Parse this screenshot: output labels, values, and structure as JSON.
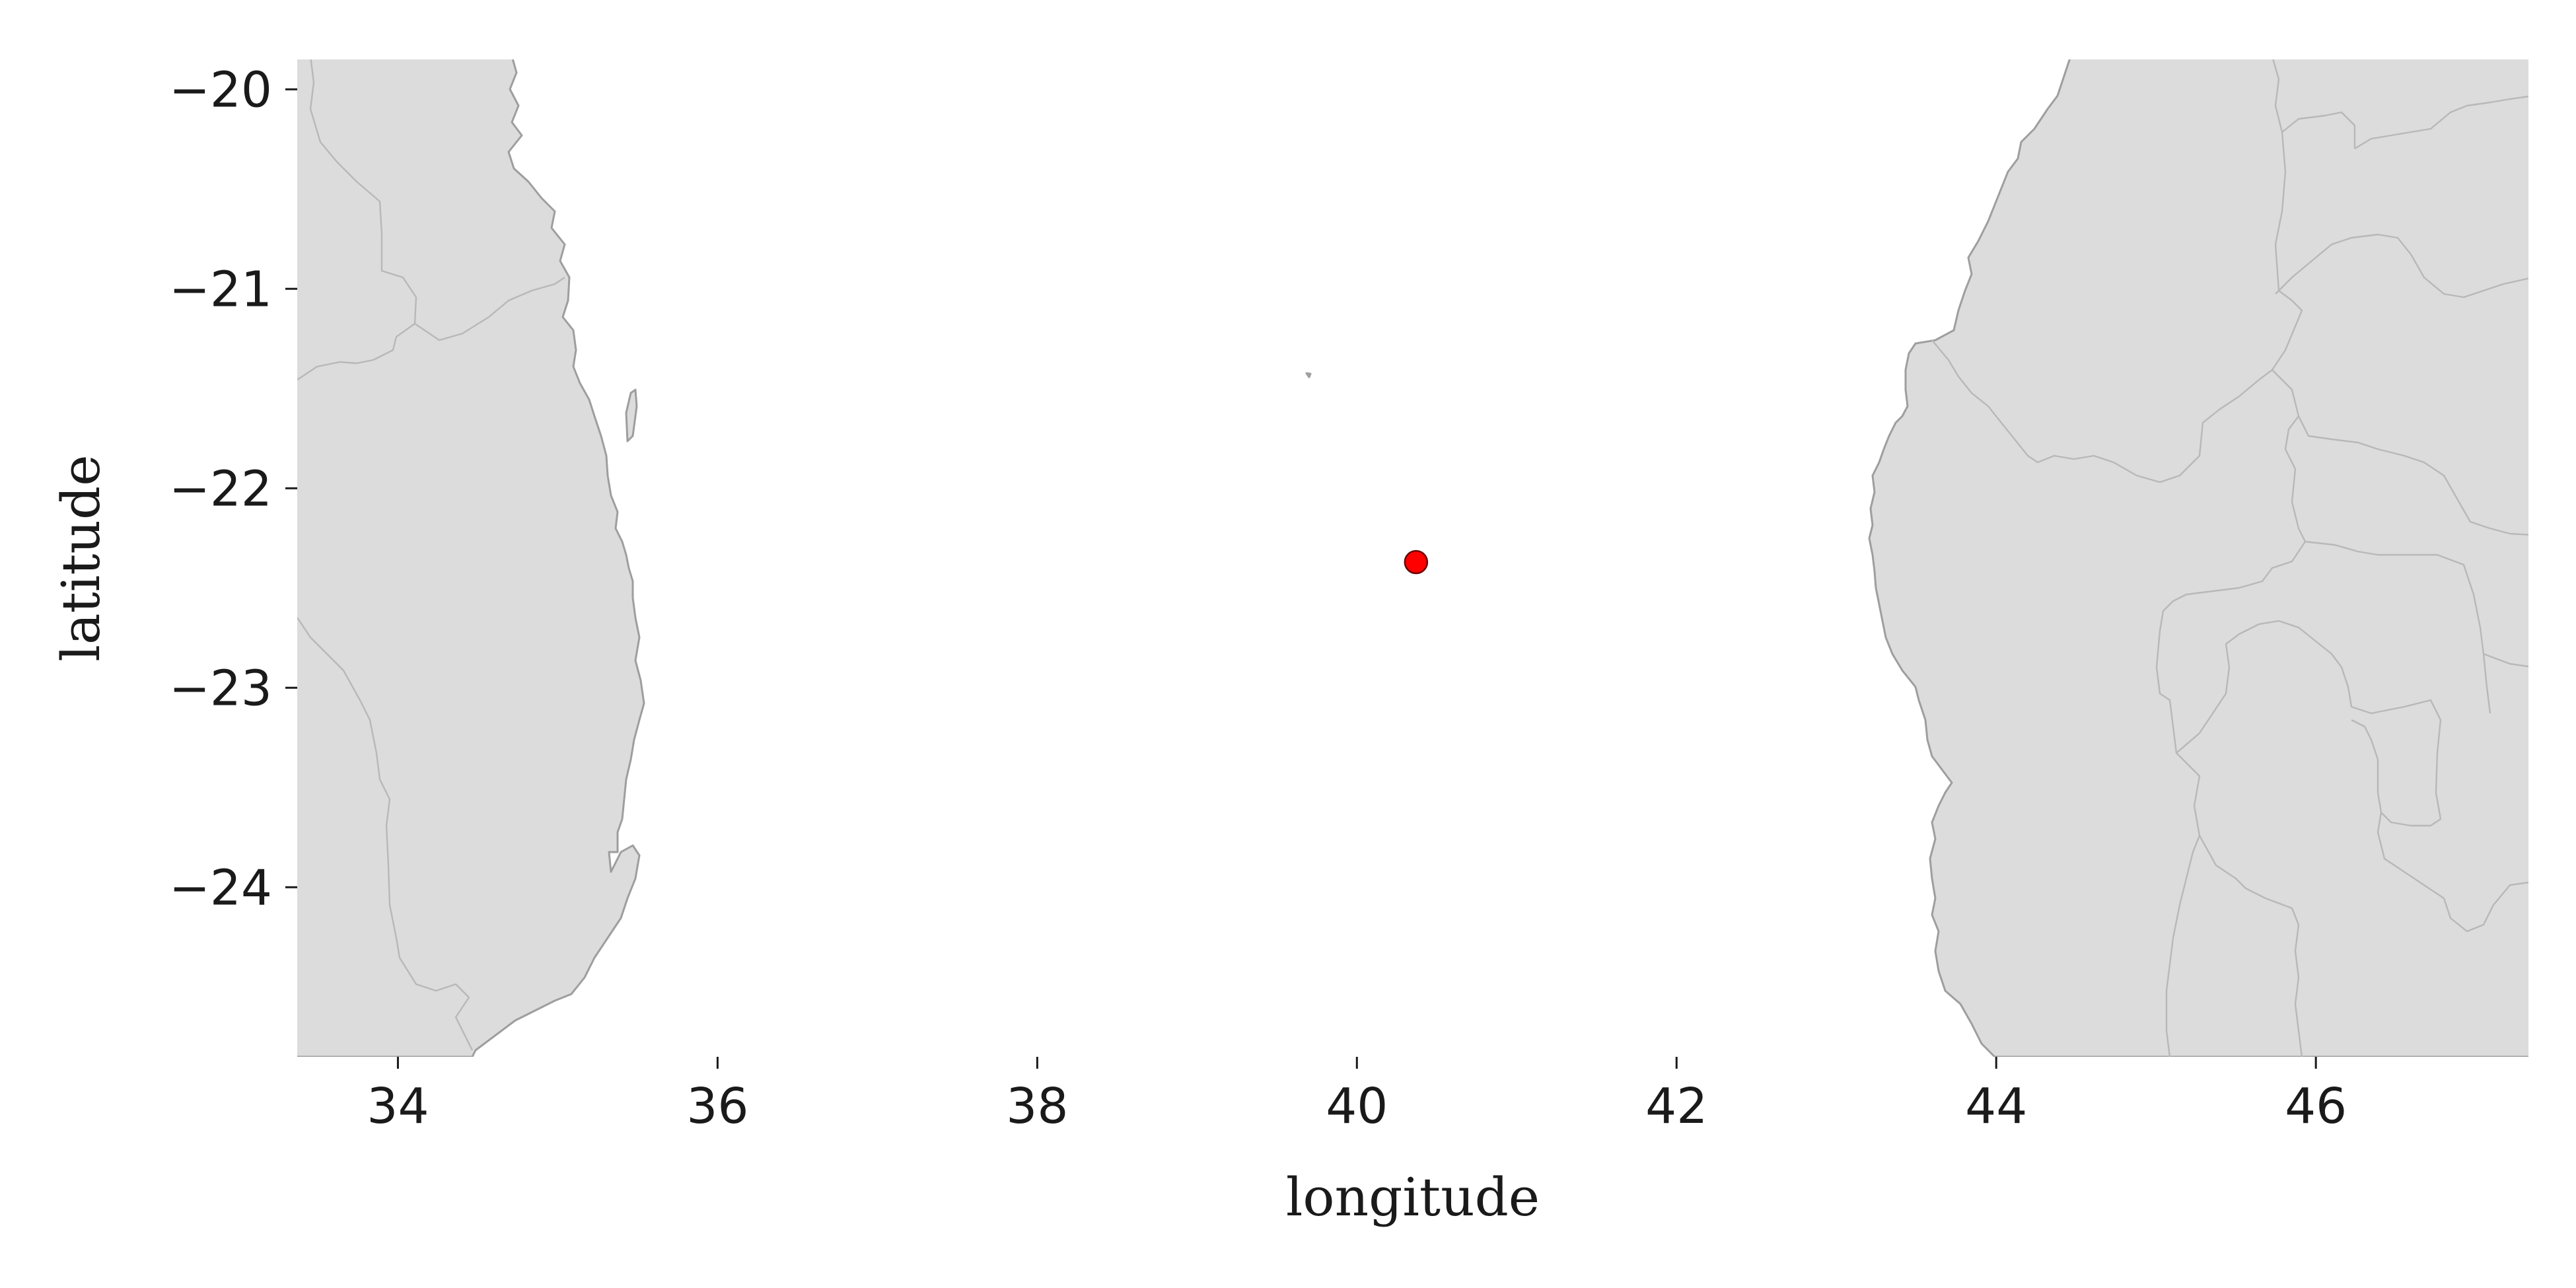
{
  "chart_data": {
    "type": "scatter",
    "title": "",
    "xlabel": "longitude",
    "ylabel": "latitude",
    "xlim": [
      33.37,
      47.33
    ],
    "ylim": [
      -24.85,
      -19.85
    ],
    "x_ticks": [
      34,
      36,
      38,
      40,
      42,
      44,
      46
    ],
    "y_ticks": [
      -20,
      -21,
      -22,
      -23,
      -24
    ],
    "x_tick_labels": [
      "34",
      "36",
      "38",
      "40",
      "42",
      "44",
      "46"
    ],
    "y_tick_labels": [
      "−20",
      "−21",
      "−22",
      "−23",
      "−24"
    ],
    "grid": false,
    "basemap": "land polygons with internal borders (Mozambique coast on the left, Madagascar on the right)",
    "series": [
      {
        "x": [
          40.37
        ],
        "y": [
          -22.37
        ],
        "color": "#ff0000",
        "marker": "circle"
      }
    ]
  },
  "colors": {
    "land": "#dcdcdc",
    "coast": "#9e9e9e",
    "border": "#b8b8b8",
    "point_fill": "#ff0000",
    "point_edge": "#6b0000"
  }
}
